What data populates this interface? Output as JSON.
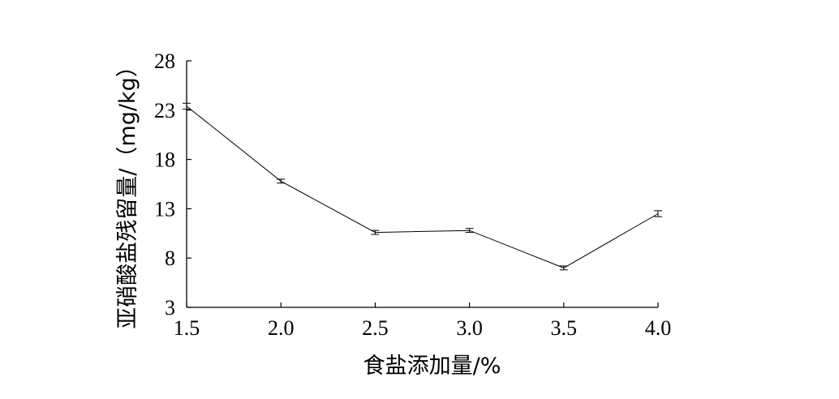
{
  "chart_data": {
    "type": "line",
    "xlabel": "食盐添加量/%",
    "ylabel": "亚硝酸盐残留量/（mg/kg）",
    "x": [
      "1.5",
      "2.0",
      "2.5",
      "3.0",
      "3.5",
      "4.0"
    ],
    "x_values": [
      1.5,
      2.0,
      2.5,
      3.0,
      3.5,
      4.0
    ],
    "y": [
      23.4,
      15.8,
      10.6,
      10.8,
      7.0,
      12.5
    ],
    "error": [
      0.3,
      0.2,
      0.2,
      0.2,
      0.2,
      0.3
    ],
    "xlim": [
      1.5,
      4.0
    ],
    "ylim": [
      3,
      28
    ],
    "yticks": [
      3,
      8,
      13,
      18,
      23,
      28
    ],
    "grid": false,
    "line_color": "#000000"
  }
}
